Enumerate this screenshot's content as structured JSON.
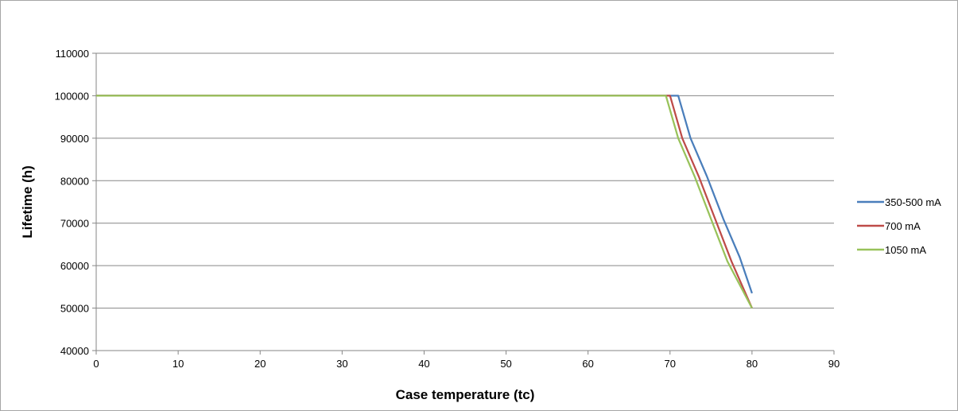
{
  "chart_data": {
    "type": "line",
    "title": "",
    "xlabel": "Case temperature (tc)",
    "ylabel": "Lifetime (h)",
    "xlim": [
      0,
      90
    ],
    "ylim": [
      40000,
      110000
    ],
    "x_ticks": [
      "0",
      "10",
      "20",
      "30",
      "40",
      "50",
      "60",
      "70",
      "80",
      "90"
    ],
    "y_ticks": [
      "40000",
      "50000",
      "60000",
      "70000",
      "80000",
      "90000",
      "100000",
      "110000"
    ],
    "grid": "horizontal",
    "legend_position": "right",
    "series": [
      {
        "name": "350-500 mA",
        "color": "#4a7ebb",
        "points": [
          [
            0,
            100000
          ],
          [
            71,
            100000
          ],
          [
            72.5,
            90000
          ],
          [
            74.5,
            81000
          ],
          [
            76.5,
            71000
          ],
          [
            78.5,
            62000
          ],
          [
            80,
            53500
          ]
        ]
      },
      {
        "name": "700 mA",
        "color": "#be4b48",
        "points": [
          [
            0,
            100000
          ],
          [
            70,
            100000
          ],
          [
            71.5,
            90000
          ],
          [
            73.5,
            81000
          ],
          [
            75.5,
            71000
          ],
          [
            77.5,
            61000
          ],
          [
            80,
            50000
          ]
        ]
      },
      {
        "name": "1050 mA",
        "color": "#98c25a",
        "points": [
          [
            0,
            100000
          ],
          [
            69.5,
            100000
          ],
          [
            71,
            90000
          ],
          [
            73,
            81000
          ],
          [
            75,
            71000
          ],
          [
            77,
            61000
          ],
          [
            80,
            50000
          ]
        ]
      }
    ]
  }
}
